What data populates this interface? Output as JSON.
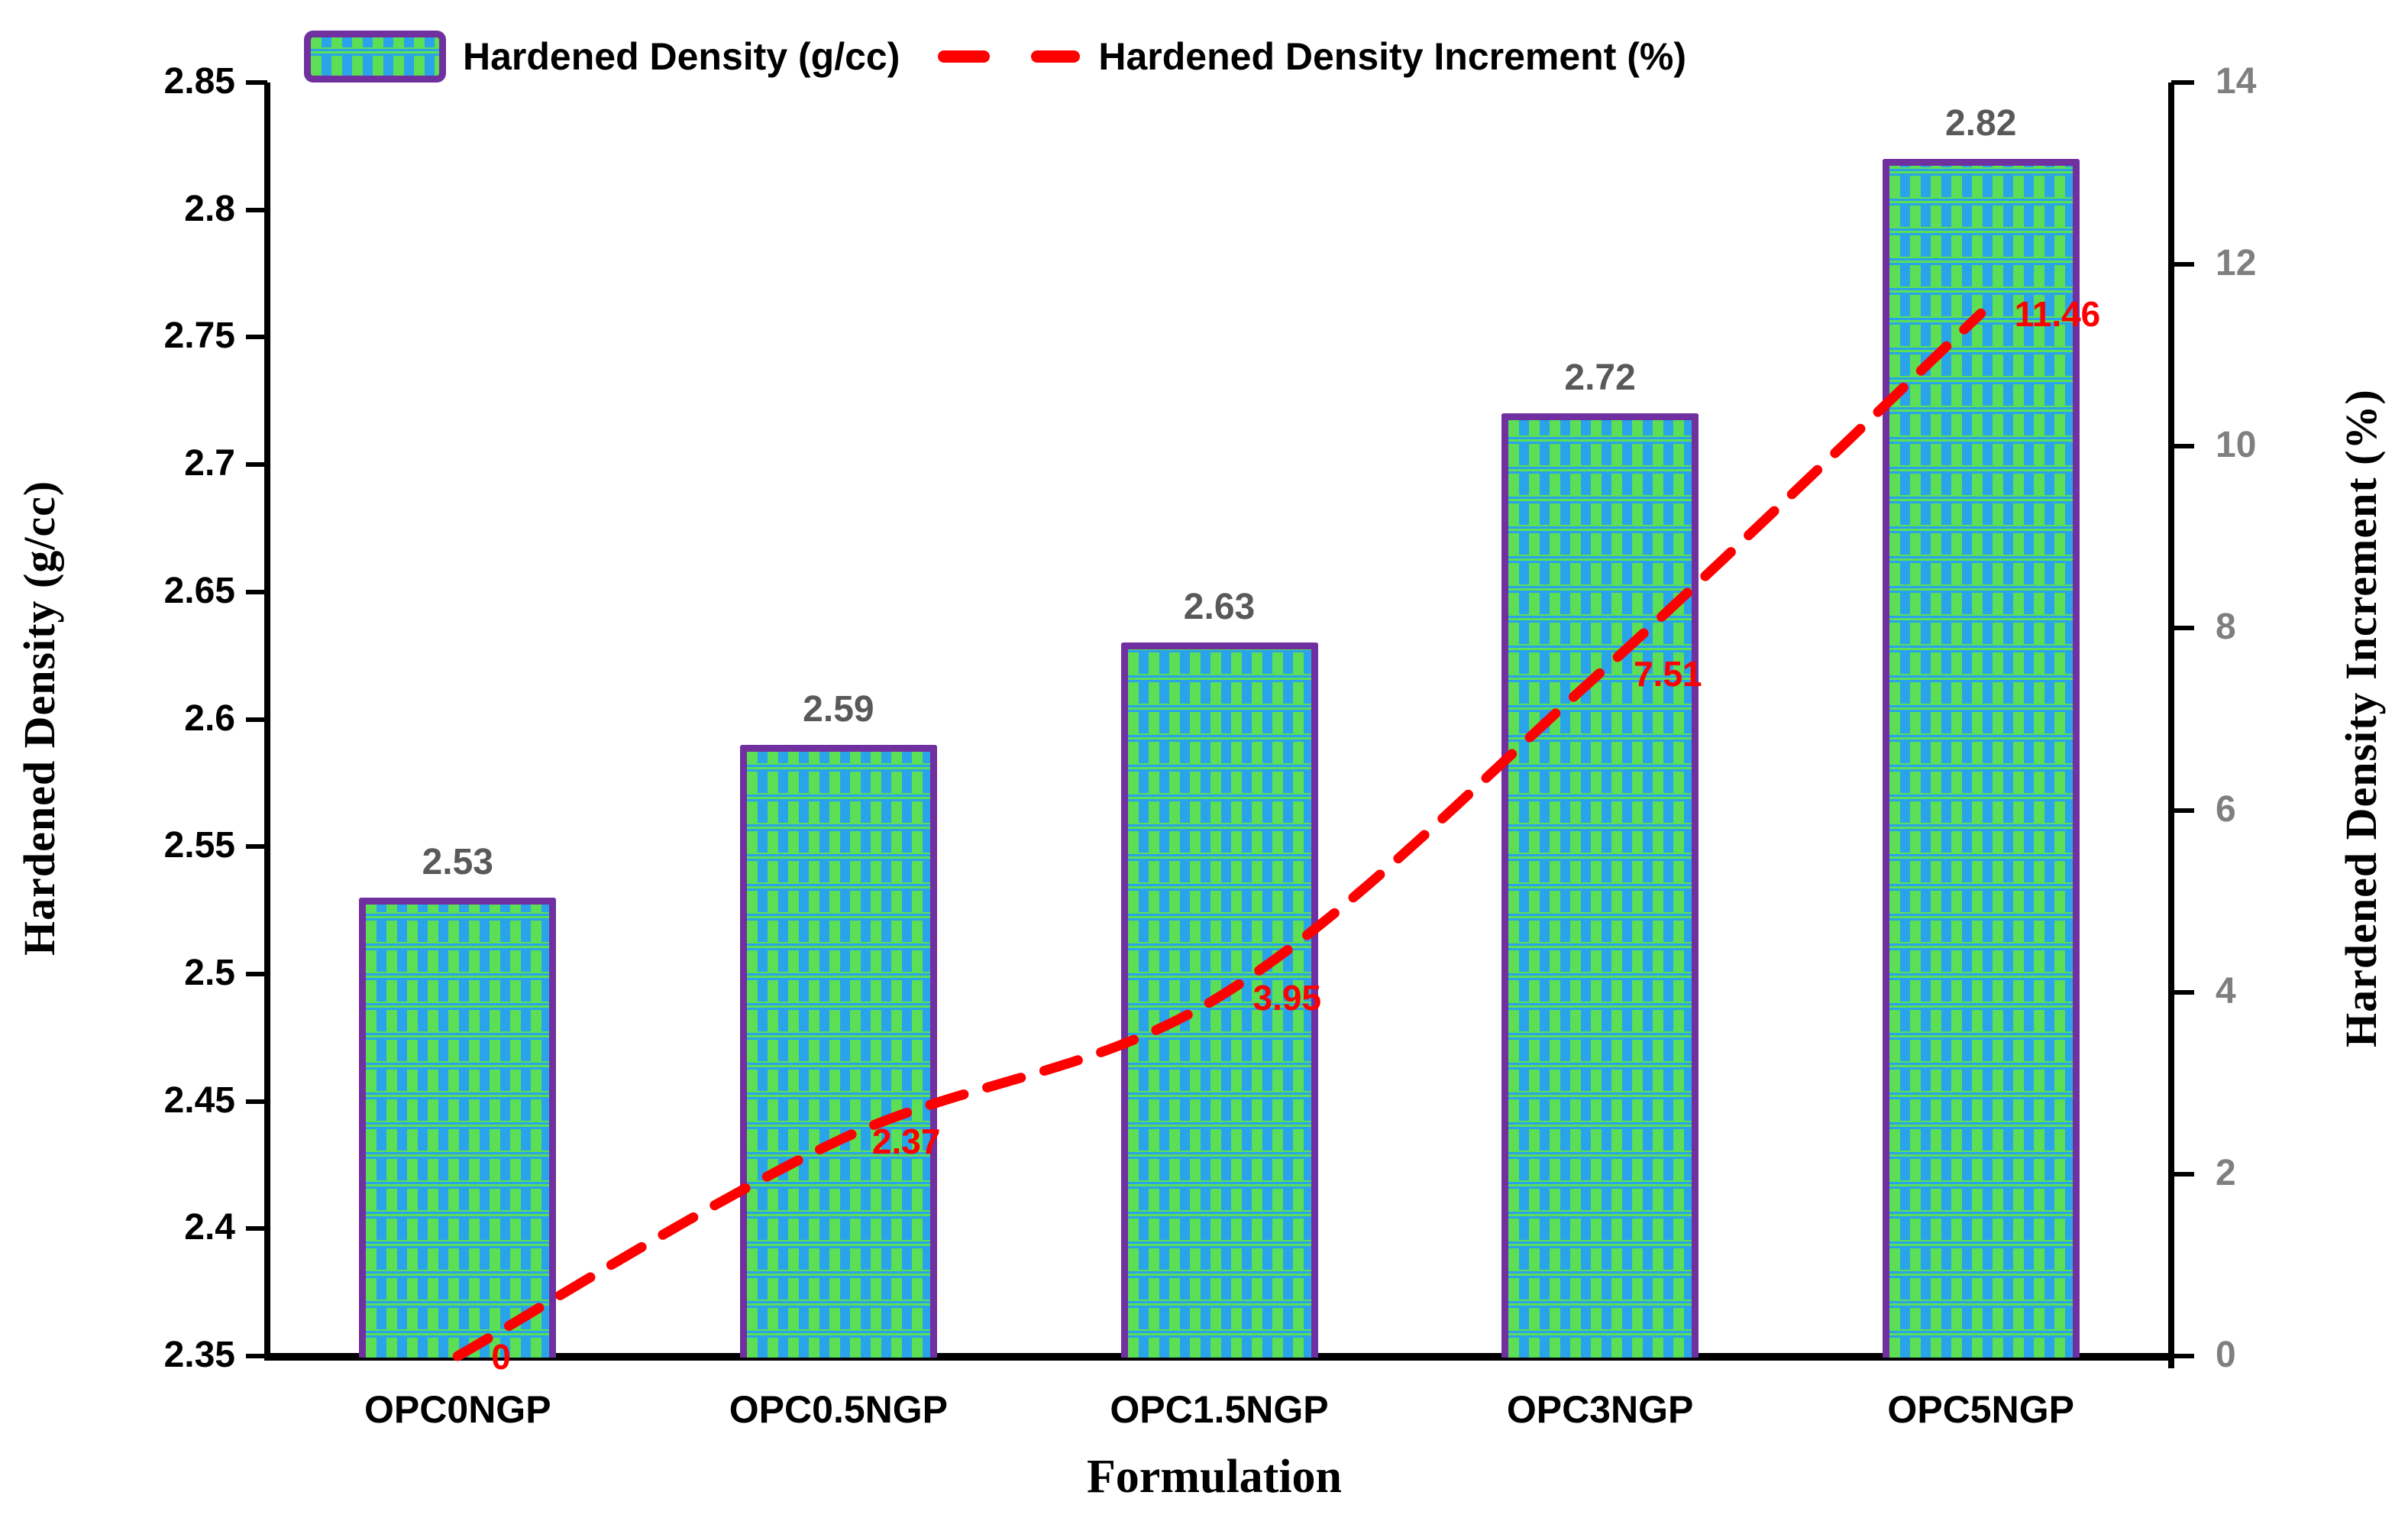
{
  "legend": {
    "bar_label": "Hardened Density (g/cc)",
    "line_label": "Hardened Density Increment (%)"
  },
  "axes": {
    "left": {
      "title": "Hardened Density (g/cc)",
      "ticks": [
        "2.85",
        "2.8",
        "2.75",
        "2.7",
        "2.65",
        "2.6",
        "2.55",
        "2.5",
        "2.45",
        "2.4",
        "2.35"
      ]
    },
    "right": {
      "title": "Hardened Density Increment (%)",
      "ticks": [
        "14",
        "12",
        "10",
        "8",
        "6",
        "4",
        "2",
        "0"
      ]
    },
    "x": {
      "title": "Formulation"
    }
  },
  "chart_data": {
    "type": "combo",
    "categories": [
      "OPC0NGP",
      "OPC0.5NGP",
      "OPC1.5NGP",
      "OPC3NGP",
      "OPC5NGP"
    ],
    "series": [
      {
        "name": "Hardened Density (g/cc)",
        "type": "bar",
        "axis": "left",
        "values": [
          2.53,
          2.59,
          2.63,
          2.72,
          2.82
        ],
        "labels": [
          "2.53",
          "2.59",
          "2.63",
          "2.72",
          "2.82"
        ]
      },
      {
        "name": "Hardened Density Increment (%)",
        "type": "line",
        "axis": "right",
        "values": [
          0,
          2.37,
          3.95,
          7.51,
          11.46
        ],
        "labels": [
          "0",
          "2.37",
          "3.95",
          "7.51",
          "11.46"
        ],
        "style": "dashed",
        "smooth": true
      }
    ],
    "title": "",
    "xlabel": "Formulation",
    "ylabel_left": "Hardened Density (g/cc)",
    "ylabel_right": "Hardened Density Increment (%)",
    "left_ylim": [
      2.35,
      2.85
    ],
    "left_tick_step": 0.05,
    "right_ylim": [
      0,
      14
    ],
    "right_tick_step": 2,
    "grid": false,
    "legend_position": "top"
  },
  "colors": {
    "bar_pattern_green": "#5CDF55",
    "bar_pattern_blue": "#29A3EA",
    "bar_border_purple": "#7030A0",
    "line_red": "#FF0000",
    "bar_label_gray": "#595959",
    "right_tick_gray": "#7F7F7F",
    "axis_black": "#000000"
  }
}
